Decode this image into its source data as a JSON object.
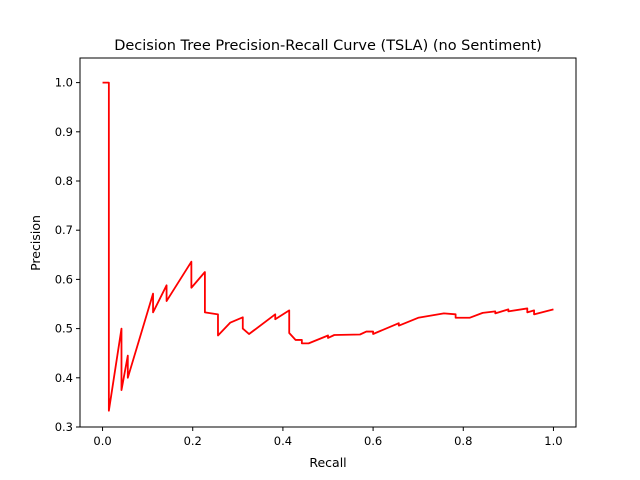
{
  "chart_data": {
    "type": "line",
    "title": "Decision Tree Precision-Recall Curve (TSLA) (no Sentiment)",
    "xlabel": "Recall",
    "ylabel": "Precision",
    "xlim": [
      -0.05,
      1.05
    ],
    "ylim": [
      0.3,
      1.05
    ],
    "xticks": [
      0.0,
      0.2,
      0.4,
      0.6,
      0.8,
      1.0
    ],
    "xtick_labels": [
      "0.0",
      "0.2",
      "0.4",
      "0.6",
      "0.8",
      "1.0"
    ],
    "yticks": [
      0.3,
      0.4,
      0.5,
      0.6,
      0.7,
      0.8,
      0.9,
      1.0
    ],
    "ytick_labels": [
      "0.3",
      "0.4",
      "0.5",
      "0.6",
      "0.7",
      "0.8",
      "0.9",
      "1.0"
    ],
    "grid": false,
    "legend": null,
    "series": [
      {
        "color": "#ff0000",
        "x": [
          0.0,
          0.014,
          0.014,
          0.042,
          0.042,
          0.056,
          0.056,
          0.112,
          0.112,
          0.142,
          0.142,
          0.197,
          0.197,
          0.227,
          0.227,
          0.256,
          0.256,
          0.283,
          0.311,
          0.311,
          0.325,
          0.383,
          0.383,
          0.414,
          0.414,
          0.428,
          0.442,
          0.442,
          0.457,
          0.5,
          0.5,
          0.514,
          0.571,
          0.585,
          0.6,
          0.6,
          0.657,
          0.657,
          0.7,
          0.757,
          0.783,
          0.783,
          0.814,
          0.843,
          0.871,
          0.871,
          0.9,
          0.9,
          0.942,
          0.942,
          0.957,
          0.957,
          1.0
        ],
        "y": [
          1.0,
          1.0,
          0.333,
          0.5,
          0.375,
          0.445,
          0.4,
          0.571,
          0.533,
          0.588,
          0.556,
          0.636,
          0.583,
          0.615,
          0.533,
          0.529,
          0.486,
          0.512,
          0.523,
          0.5,
          0.489,
          0.529,
          0.519,
          0.537,
          0.491,
          0.477,
          0.477,
          0.47,
          0.47,
          0.486,
          0.481,
          0.487,
          0.488,
          0.494,
          0.494,
          0.489,
          0.511,
          0.506,
          0.522,
          0.531,
          0.529,
          0.522,
          0.522,
          0.532,
          0.535,
          0.531,
          0.539,
          0.535,
          0.541,
          0.533,
          0.537,
          0.529,
          0.539
        ]
      }
    ]
  }
}
